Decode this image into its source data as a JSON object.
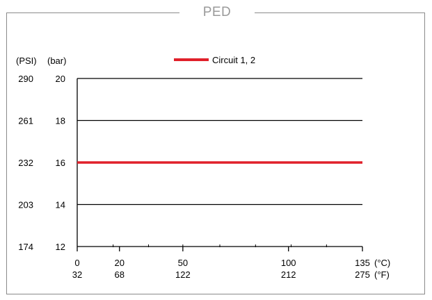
{
  "chart_data": {
    "type": "line",
    "title": "PED",
    "ylabel_primary": "(PSI)",
    "ylabel_secondary": "(bar)",
    "xunit_primary": "(°C)",
    "xunit_secondary": "(°F)",
    "xlim": [
      0,
      135
    ],
    "ylim": [
      12,
      20
    ],
    "x_ticks": [
      {
        "c": 0,
        "c_label": "0",
        "f_label": "32"
      },
      {
        "c": 20,
        "c_label": "20",
        "f_label": "68"
      },
      {
        "c": 50,
        "c_label": "50",
        "f_label": "122"
      },
      {
        "c": 100,
        "c_label": "100",
        "f_label": "212"
      },
      {
        "c": 135,
        "c_label": "135",
        "f_label": "275"
      }
    ],
    "x_minor_ticks": [
      17,
      33.75,
      50,
      67.5,
      84.4,
      101.25,
      118
    ],
    "y_ticks": [
      {
        "bar": 20,
        "bar_label": "20",
        "psi_label": "290"
      },
      {
        "bar": 18,
        "bar_label": "18",
        "psi_label": "261"
      },
      {
        "bar": 16,
        "bar_label": "16",
        "psi_label": "232"
      },
      {
        "bar": 14,
        "bar_label": "14",
        "psi_label": "203"
      },
      {
        "bar": 12,
        "bar_label": "12",
        "psi_label": "174"
      }
    ],
    "grid": true,
    "legend_position": "top-center",
    "series": [
      {
        "name": "Circuit 1, 2",
        "color": "#e0202a",
        "x": [
          0,
          135
        ],
        "y": [
          16,
          16
        ]
      }
    ]
  }
}
